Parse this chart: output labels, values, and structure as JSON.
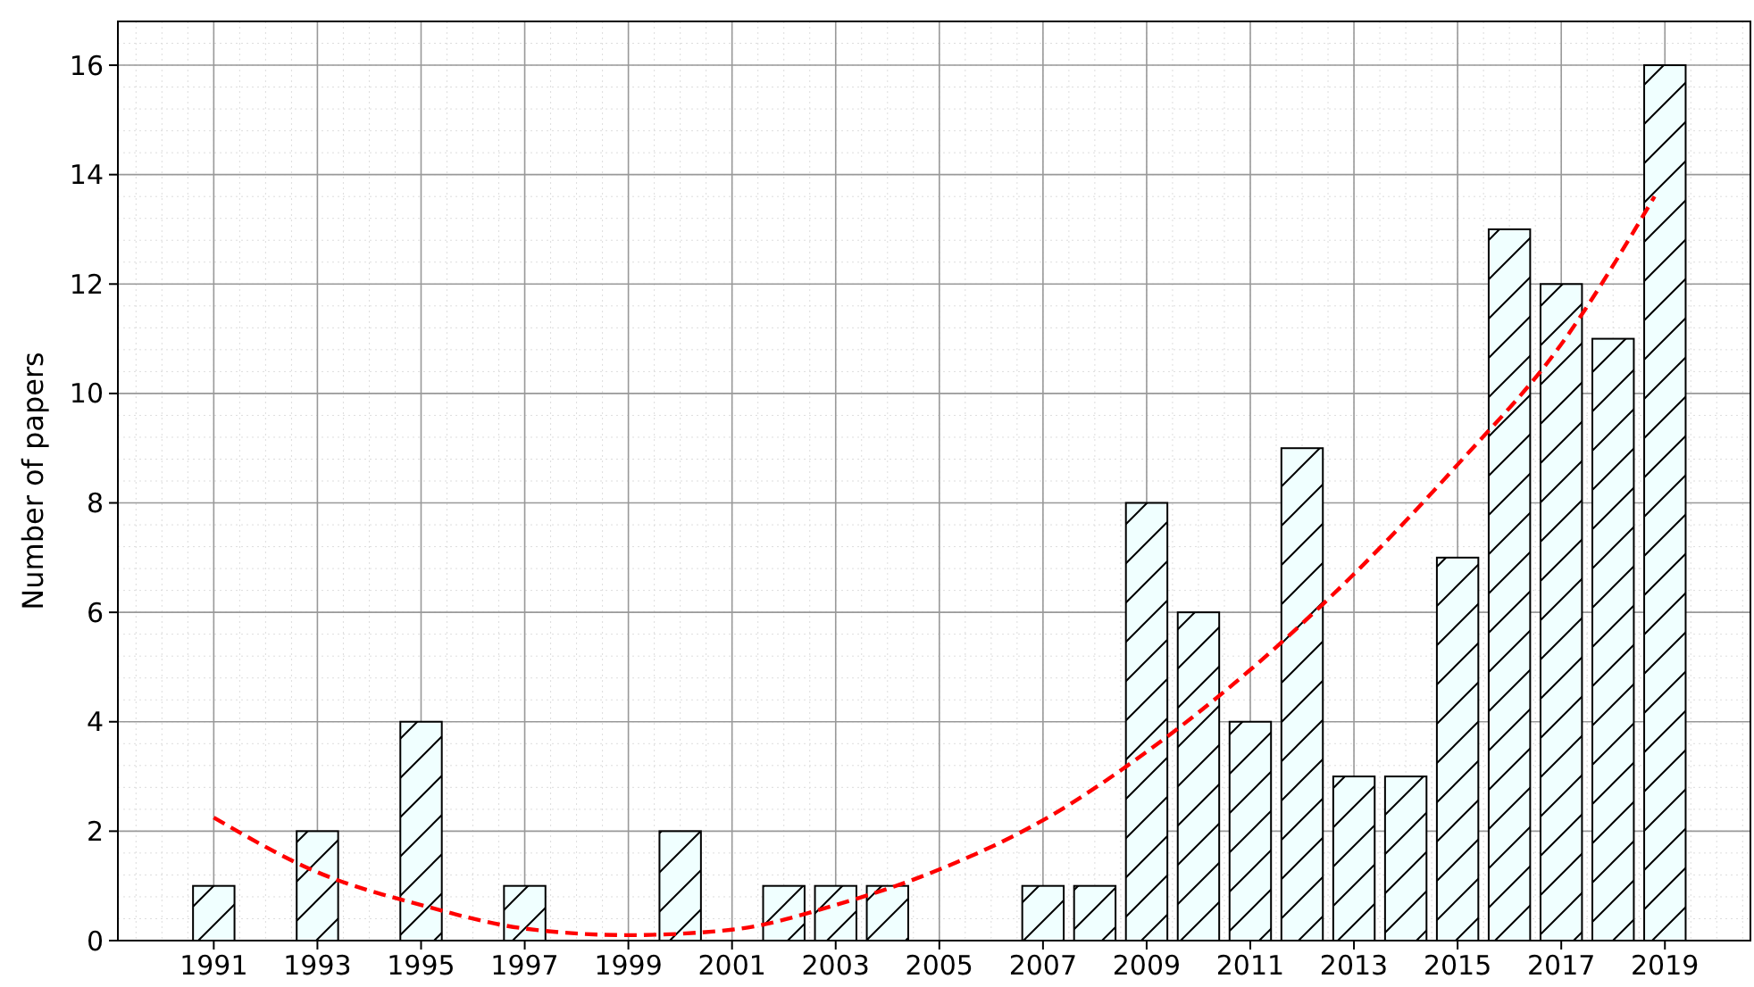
{
  "chart_data": {
    "type": "bar",
    "ylabel": "Number of papers",
    "x": [
      1991,
      1992,
      1993,
      1994,
      1995,
      1996,
      1997,
      1998,
      1999,
      2000,
      2001,
      2002,
      2003,
      2004,
      2005,
      2006,
      2007,
      2008,
      2009,
      2010,
      2011,
      2012,
      2013,
      2014,
      2015,
      2016,
      2017,
      2018,
      2019
    ],
    "series": [
      {
        "color": "#f0ffff",
        "values": [
          1,
          0,
          2,
          0,
          4,
          0,
          1,
          0,
          0,
          2,
          0,
          1,
          1,
          1,
          0,
          0,
          1,
          1,
          8,
          6,
          4,
          9,
          3,
          3,
          7,
          13,
          12,
          11,
          16
        ]
      },
      {
        "type": "line",
        "color": "#ff0000",
        "line_style": "dashed",
        "marker": "none",
        "x": [
          1991,
          1993,
          1995,
          1997,
          1999,
          2001,
          2003,
          2005,
          2007,
          2009,
          2011,
          2013,
          2015,
          2017,
          2018.8
        ],
        "values": [
          2.25,
          1.25,
          0.65,
          0.22,
          0.1,
          0.2,
          0.65,
          1.3,
          2.2,
          3.45,
          4.95,
          6.7,
          8.7,
          10.9,
          13.6
        ]
      }
    ],
    "xlim": [
      1989.15,
      2020.65
    ],
    "xticks": [
      1991,
      1993,
      1995,
      1997,
      1999,
      2001,
      2003,
      2005,
      2007,
      2009,
      2011,
      2013,
      2015,
      2017,
      2019
    ],
    "ylim": [
      0,
      16.8
    ],
    "yticks": [
      0,
      2,
      4,
      6,
      8,
      10,
      12,
      14,
      16
    ],
    "grid": true
  }
}
